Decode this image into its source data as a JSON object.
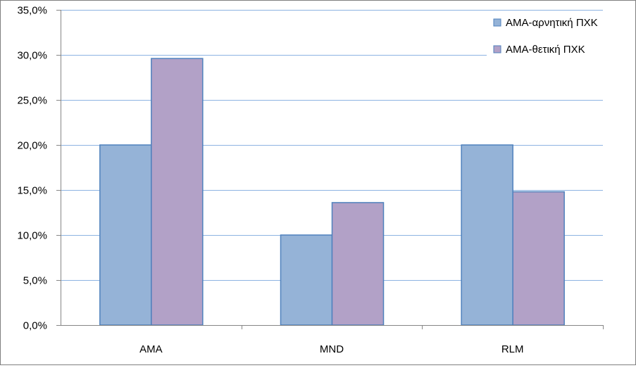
{
  "chart_data": {
    "type": "bar",
    "title": "",
    "xlabel": "",
    "ylabel": "",
    "categories": [
      "AMA",
      "MND",
      "RLM"
    ],
    "series": [
      {
        "name": "ΑΜΑ-αρνητική ΠΧΚ",
        "values": [
          0.2,
          0.1,
          0.2
        ],
        "color": "#95b3d7",
        "border": "#4f81bd"
      },
      {
        "name": "ΑΜΑ-θετική ΠΧΚ",
        "values": [
          0.296,
          0.136,
          0.148
        ],
        "color": "#b2a1c7",
        "border": "#4f81bd"
      }
    ],
    "ylim": [
      0,
      0.35
    ],
    "yticks": [
      {
        "value": 0.0,
        "label": "0,0%"
      },
      {
        "value": 0.05,
        "label": "5,0%"
      },
      {
        "value": 0.1,
        "label": "10,0%"
      },
      {
        "value": 0.15,
        "label": "15,0%"
      },
      {
        "value": 0.2,
        "label": "20,0%"
      },
      {
        "value": 0.25,
        "label": "25,0%"
      },
      {
        "value": 0.3,
        "label": "30,0%"
      },
      {
        "value": 0.35,
        "label": "35,0%"
      }
    ],
    "grid": true,
    "gridColor": "#8db3e2",
    "legend": "top-right"
  }
}
